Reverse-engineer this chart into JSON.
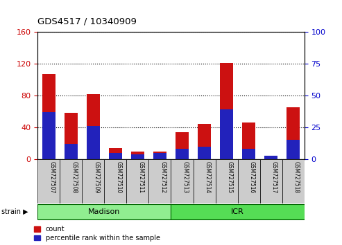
{
  "title": "GDS4517 / 10340909",
  "samples": [
    "GSM727507",
    "GSM727508",
    "GSM727509",
    "GSM727510",
    "GSM727511",
    "GSM727512",
    "GSM727513",
    "GSM727514",
    "GSM727515",
    "GSM727516",
    "GSM727517",
    "GSM727518"
  ],
  "count_values": [
    107,
    58,
    82,
    14,
    10,
    10,
    34,
    44,
    121,
    46,
    4,
    65
  ],
  "percentile_values": [
    37,
    12,
    26,
    5,
    4,
    5,
    8,
    10,
    39,
    8,
    3,
    15
  ],
  "groups": [
    {
      "label": "Madison",
      "start": 0,
      "end": 6,
      "color": "#90ee90"
    },
    {
      "label": "ICR",
      "start": 6,
      "end": 12,
      "color": "#55dd55"
    }
  ],
  "ylim_left": [
    0,
    160
  ],
  "ylim_right": [
    0,
    100
  ],
  "yticks_left": [
    0,
    40,
    80,
    120,
    160
  ],
  "yticks_right": [
    0,
    25,
    50,
    75,
    100
  ],
  "bar_color_red": "#cc1111",
  "bar_color_blue": "#2222bb",
  "axis_color_left": "#cc0000",
  "axis_color_right": "#0000cc",
  "bg_label": "#cccccc",
  "legend_red": "count",
  "legend_blue": "percentile rank within the sample",
  "strain_label": "strain"
}
